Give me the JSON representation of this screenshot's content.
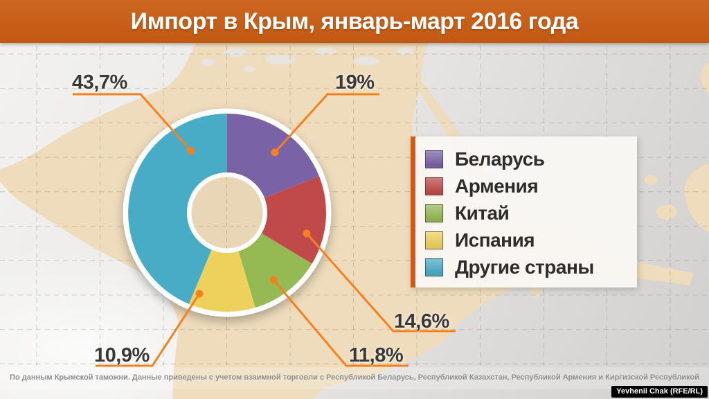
{
  "header": {
    "title": "Импорт в Крым, январь-март 2016 года"
  },
  "chart_data": {
    "type": "pie",
    "donut": true,
    "title": "Импорт в Крым, январь-март 2016 года",
    "legend_position": "right",
    "start_angle_deg": 0,
    "direction": "clockwise",
    "slices": [
      {
        "label": "Беларусь",
        "value": 19,
        "display": "19%",
        "color": "#7a62a6"
      },
      {
        "label": "Армения",
        "value": 14.6,
        "display": "14,6%",
        "color": "#bf4a49"
      },
      {
        "label": "Китай",
        "value": 11.8,
        "display": "11,8%",
        "color": "#95b953"
      },
      {
        "label": "Испания",
        "value": 10.9,
        "display": "10,9%",
        "color": "#eed15c"
      },
      {
        "label": "Другие страны",
        "value": 43.7,
        "display": "43,7%",
        "color": "#48acc7"
      }
    ]
  },
  "footer": {
    "source_note": "По данным Крымской таможни. Данные приведены с учетом взаимной торговли с Республикой Беларусь, Республикой Казахстан, Республикой Армения и Киргизской Республикой"
  },
  "credit": {
    "text": "Yevhenii Chak (RFE/RL)"
  },
  "colors": {
    "header_bg": "#c45e1c",
    "callout": "#f5811e",
    "map_land": "#eedcbc",
    "legend_accent": "#d15a14",
    "hole_fill": "#e9d6b6"
  }
}
